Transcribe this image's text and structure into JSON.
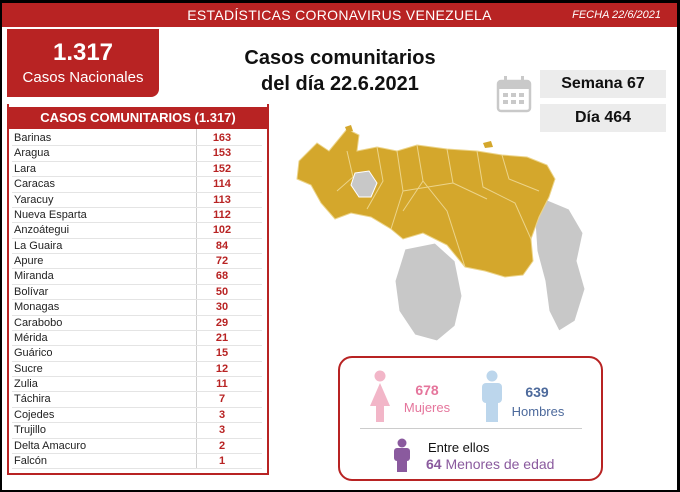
{
  "header": {
    "title": "ESTADÍSTICAS CORONAVIRUS VENEZUELA",
    "fecha": "FECHA 22/6/2021"
  },
  "total": {
    "number": "1.317",
    "label": "Casos Nacionales"
  },
  "main_title": {
    "line1": "Casos comunitarios",
    "line2": "del día 22.6.2021"
  },
  "semana": "Semana 67",
  "dia": "Día 464",
  "table": {
    "title": "CASOS COMUNITARIOS (1.317)",
    "rows": [
      {
        "state": "Barinas",
        "value": "163"
      },
      {
        "state": "Aragua",
        "value": "153"
      },
      {
        "state": "Lara",
        "value": "152"
      },
      {
        "state": "Caracas",
        "value": "114"
      },
      {
        "state": "Yaracuy",
        "value": "113"
      },
      {
        "state": "Nueva Esparta",
        "value": "112"
      },
      {
        "state": "Anzoátegui",
        "value": "102"
      },
      {
        "state": "La Guaira",
        "value": "84"
      },
      {
        "state": "Apure",
        "value": "72"
      },
      {
        "state": "Miranda",
        "value": "68"
      },
      {
        "state": "Bolívar",
        "value": "50"
      },
      {
        "state": "Monagas",
        "value": "30"
      },
      {
        "state": "Carabobo",
        "value": "29"
      },
      {
        "state": "Mérida",
        "value": "21"
      },
      {
        "state": "Guárico",
        "value": "15"
      },
      {
        "state": "Sucre",
        "value": "12"
      },
      {
        "state": "Zulia",
        "value": "11"
      },
      {
        "state": "Táchira",
        "value": "7"
      },
      {
        "state": "Cojedes",
        "value": "3"
      },
      {
        "state": "Trujillo",
        "value": "3"
      },
      {
        "state": "Delta Amacuro",
        "value": "2"
      },
      {
        "state": "Falcón",
        "value": "1"
      }
    ]
  },
  "gender": {
    "women_count": "678",
    "women_label": "Mujeres",
    "men_count": "639",
    "men_label": "Hombres",
    "children_intro": "Entre ellos",
    "children_count": "64",
    "children_label": "Menores de edad"
  },
  "colors": {
    "red": "#b82323",
    "map_fill": "#d4a72c",
    "map_grey": "#c8c8c8",
    "women": "#e5759c",
    "men": "#4d6a9c",
    "children": "#8a5a9e"
  }
}
